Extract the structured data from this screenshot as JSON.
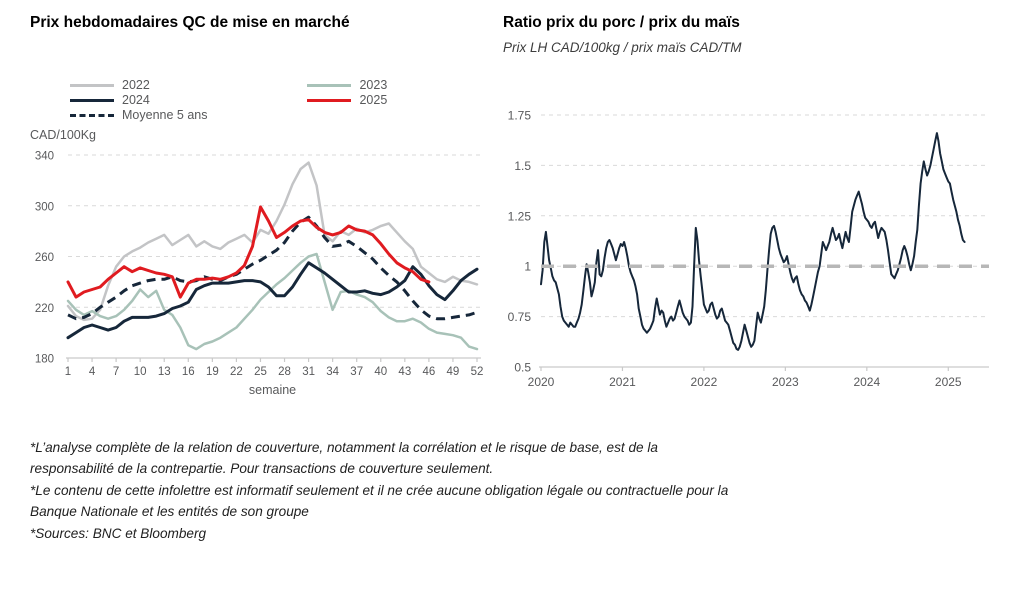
{
  "colors": {
    "navy": "#16273a",
    "red": "#e01b20",
    "gray2022": "#c3c4c6",
    "sage2023": "#a8c2b8",
    "gridline": "#d9d9d9",
    "axis": "#c9c9c9",
    "tick_text": "#58595b",
    "reference": "#b7b7b7"
  },
  "chart_data": [
    {
      "type": "line",
      "title": "Prix hebdomadaires QC de mise en marché",
      "unit_label": "CAD/100Kg",
      "xlabel": "semaine",
      "xlim": [
        1,
        52
      ],
      "ylim": [
        180,
        340
      ],
      "grid": "horizontal-dashed",
      "x_ticks": [
        1,
        4,
        7,
        10,
        13,
        16,
        19,
        22,
        25,
        28,
        31,
        34,
        37,
        40,
        43,
        46,
        49,
        52
      ],
      "y_ticks": [
        180,
        220,
        260,
        300,
        340
      ],
      "legend_position": "top-left-two-columns",
      "legend_columns": [
        [
          {
            "label": "2022",
            "color": "#c3c4c6",
            "dash": false
          },
          {
            "label": "2024",
            "color": "#16273a",
            "dash": false
          },
          {
            "label": "Moyenne 5 ans",
            "color": "#16273a",
            "dash": true
          }
        ],
        [
          {
            "label": "2023",
            "color": "#a8c2b8",
            "dash": false
          },
          {
            "label": "2025",
            "color": "#e01b20",
            "dash": false
          }
        ]
      ],
      "x_start": 1,
      "x_step": 1,
      "series": [
        {
          "name": "2022",
          "color": "#c3c4c6",
          "width": 2.5,
          "dash": null,
          "values": [
            221,
            213,
            210,
            211,
            218,
            237,
            252,
            260,
            264,
            267,
            271,
            274,
            277,
            269,
            273,
            277,
            268,
            272,
            268,
            266,
            271,
            274,
            277,
            271,
            281,
            278,
            288,
            301,
            317,
            329,
            334,
            316,
            277,
            272,
            280,
            277,
            282,
            279,
            281,
            284,
            286,
            279,
            272,
            266,
            252,
            247,
            242,
            240,
            244,
            241,
            240,
            238
          ]
        },
        {
          "name": "2023",
          "color": "#a8c2b8",
          "width": 2.5,
          "dash": null,
          "values": [
            225,
            218,
            214,
            217,
            213,
            211,
            213,
            218,
            225,
            234,
            228,
            233,
            218,
            214,
            204,
            190,
            187,
            191,
            193,
            196,
            200,
            204,
            211,
            218,
            226,
            232,
            238,
            243,
            249,
            255,
            260,
            262,
            240,
            218,
            232,
            233,
            230,
            228,
            224,
            217,
            212,
            209,
            209,
            211,
            208,
            203,
            200,
            199,
            198,
            196,
            189,
            187
          ]
        },
        {
          "name": "Moyenne 5 ans",
          "color": "#16273a",
          "width": 3,
          "dash": "9 6",
          "values": [
            214,
            211,
            212,
            215,
            220,
            224,
            228,
            233,
            237,
            239,
            241,
            242,
            242,
            244,
            241,
            240,
            241,
            244,
            242,
            241,
            244,
            246,
            250,
            254,
            257,
            261,
            265,
            271,
            280,
            287,
            291,
            284,
            275,
            268,
            269,
            272,
            268,
            263,
            258,
            251,
            245,
            240,
            233,
            225,
            218,
            213,
            211,
            211,
            212,
            213,
            214,
            216
          ]
        },
        {
          "name": "2024",
          "color": "#16273a",
          "width": 3,
          "dash": null,
          "values": [
            196,
            200,
            204,
            206,
            204,
            202,
            204,
            209,
            212,
            212,
            212,
            213,
            215,
            219,
            221,
            224,
            234,
            237,
            239,
            239,
            239,
            240,
            241,
            241,
            240,
            236,
            229,
            229,
            236,
            246,
            255,
            251,
            247,
            242,
            237,
            232,
            232,
            233,
            231,
            230,
            232,
            236,
            241,
            252,
            246,
            237,
            230,
            226,
            233,
            241,
            246,
            250
          ]
        },
        {
          "name": "2025",
          "color": "#e01b20",
          "width": 3,
          "dash": null,
          "values": [
            240,
            228,
            232,
            234,
            236,
            242,
            247,
            252,
            248,
            251,
            249,
            247,
            246,
            244,
            228,
            239,
            242,
            242,
            243,
            242,
            244,
            247,
            253,
            268,
            299,
            288,
            275,
            279,
            284,
            288,
            289,
            283,
            279,
            277,
            279,
            284,
            281,
            280,
            277,
            270,
            262,
            255,
            251,
            248,
            242,
            240
          ]
        }
      ]
    },
    {
      "type": "line",
      "title": "Ratio prix du porc / prix du maïs",
      "subtitle": "Prix LH CAD/100kg / prix maïs CAD/TM",
      "xlim": [
        2020,
        2025.5
      ],
      "ylim": [
        0.5,
        1.75
      ],
      "grid": "horizontal-dashed",
      "x_ticks": [
        2020,
        2021,
        2022,
        2023,
        2024,
        2025
      ],
      "y_ticks": [
        0.5,
        0.75,
        1,
        1.25,
        1.5,
        1.75
      ],
      "y_tick_labels": [
        "0.5",
        "0.75",
        "1",
        "1.25",
        "1.5",
        "1.75"
      ],
      "reference_line": 1,
      "x_start": 2020,
      "x_step": 0.02,
      "series": [
        {
          "name": "ratio porc/maïs",
          "color": "#16273a",
          "width": 2,
          "dash": null,
          "values": [
            0.91,
            0.98,
            1.12,
            1.17,
            1.1,
            1.03,
            0.99,
            0.95,
            0.93,
            0.92,
            0.89,
            0.86,
            0.8,
            0.75,
            0.73,
            0.72,
            0.71,
            0.7,
            0.72,
            0.71,
            0.7,
            0.7,
            0.72,
            0.74,
            0.77,
            0.81,
            0.88,
            0.95,
            1.01,
            0.97,
            0.92,
            0.85,
            0.88,
            0.92,
            1.02,
            1.08,
            0.96,
            0.95,
            0.98,
            1.04,
            1.09,
            1.12,
            1.13,
            1.11,
            1.09,
            1.06,
            1.03,
            1.06,
            1.09,
            1.11,
            1.1,
            1.12,
            1.09,
            1.05,
            1.0,
            0.97,
            0.95,
            0.93,
            0.9,
            0.86,
            0.79,
            0.75,
            0.71,
            0.69,
            0.68,
            0.67,
            0.68,
            0.69,
            0.71,
            0.73,
            0.79,
            0.84,
            0.8,
            0.76,
            0.78,
            0.77,
            0.73,
            0.7,
            0.72,
            0.74,
            0.75,
            0.73,
            0.74,
            0.77,
            0.8,
            0.83,
            0.8,
            0.77,
            0.75,
            0.74,
            0.73,
            0.71,
            0.72,
            0.8,
            1.0,
            1.19,
            1.13,
            1.03,
            0.95,
            0.88,
            0.81,
            0.79,
            0.77,
            0.78,
            0.81,
            0.82,
            0.79,
            0.76,
            0.74,
            0.75,
            0.78,
            0.79,
            0.76,
            0.73,
            0.72,
            0.71,
            0.68,
            0.65,
            0.62,
            0.61,
            0.59,
            0.585,
            0.6,
            0.63,
            0.67,
            0.71,
            0.68,
            0.65,
            0.62,
            0.6,
            0.61,
            0.63,
            0.7,
            0.77,
            0.74,
            0.72,
            0.76,
            0.8,
            0.88,
            0.98,
            1.08,
            1.16,
            1.19,
            1.2,
            1.17,
            1.13,
            1.09,
            1.06,
            1.04,
            1.02,
            1.03,
            1.05,
            1.01,
            0.97,
            0.94,
            0.92,
            0.94,
            0.95,
            0.91,
            0.88,
            0.86,
            0.85,
            0.83,
            0.82,
            0.8,
            0.78,
            0.81,
            0.85,
            0.89,
            0.93,
            0.97,
            1.0,
            1.06,
            1.12,
            1.1,
            1.08,
            1.1,
            1.12,
            1.16,
            1.19,
            1.16,
            1.13,
            1.14,
            1.16,
            1.12,
            1.09,
            1.13,
            1.17,
            1.14,
            1.12,
            1.19,
            1.27,
            1.3,
            1.33,
            1.35,
            1.37,
            1.34,
            1.31,
            1.27,
            1.24,
            1.23,
            1.22,
            1.2,
            1.19,
            1.21,
            1.22,
            1.18,
            1.14,
            1.17,
            1.19,
            1.18,
            1.17,
            1.13,
            1.08,
            1.02,
            0.96,
            0.95,
            0.94,
            0.96,
            0.98,
            1.01,
            1.04,
            1.08,
            1.1,
            1.08,
            1.05,
            1.01,
            0.98,
            1.01,
            1.05,
            1.12,
            1.18,
            1.3,
            1.41,
            1.47,
            1.52,
            1.48,
            1.45,
            1.47,
            1.5,
            1.54,
            1.58,
            1.62,
            1.66,
            1.62,
            1.56,
            1.52,
            1.48,
            1.46,
            1.44,
            1.42,
            1.41,
            1.37,
            1.33,
            1.3,
            1.27,
            1.23,
            1.2,
            1.16,
            1.13,
            1.12
          ]
        }
      ]
    }
  ],
  "footnotes": {
    "lines": [
      "*L’analyse complète de la relation de couverture, notamment la corrélation et le risque de base, est de la",
      "responsabilité de la contrepartie. Pour transactions de couverture seulement.",
      "*Le contenu de cette infolettre est informatif seulement et il ne crée aucune obligation légale ou contractuelle pour la",
      "Banque Nationale et les entités de son groupe",
      "*Sources: BNC et Bloomberg"
    ]
  }
}
